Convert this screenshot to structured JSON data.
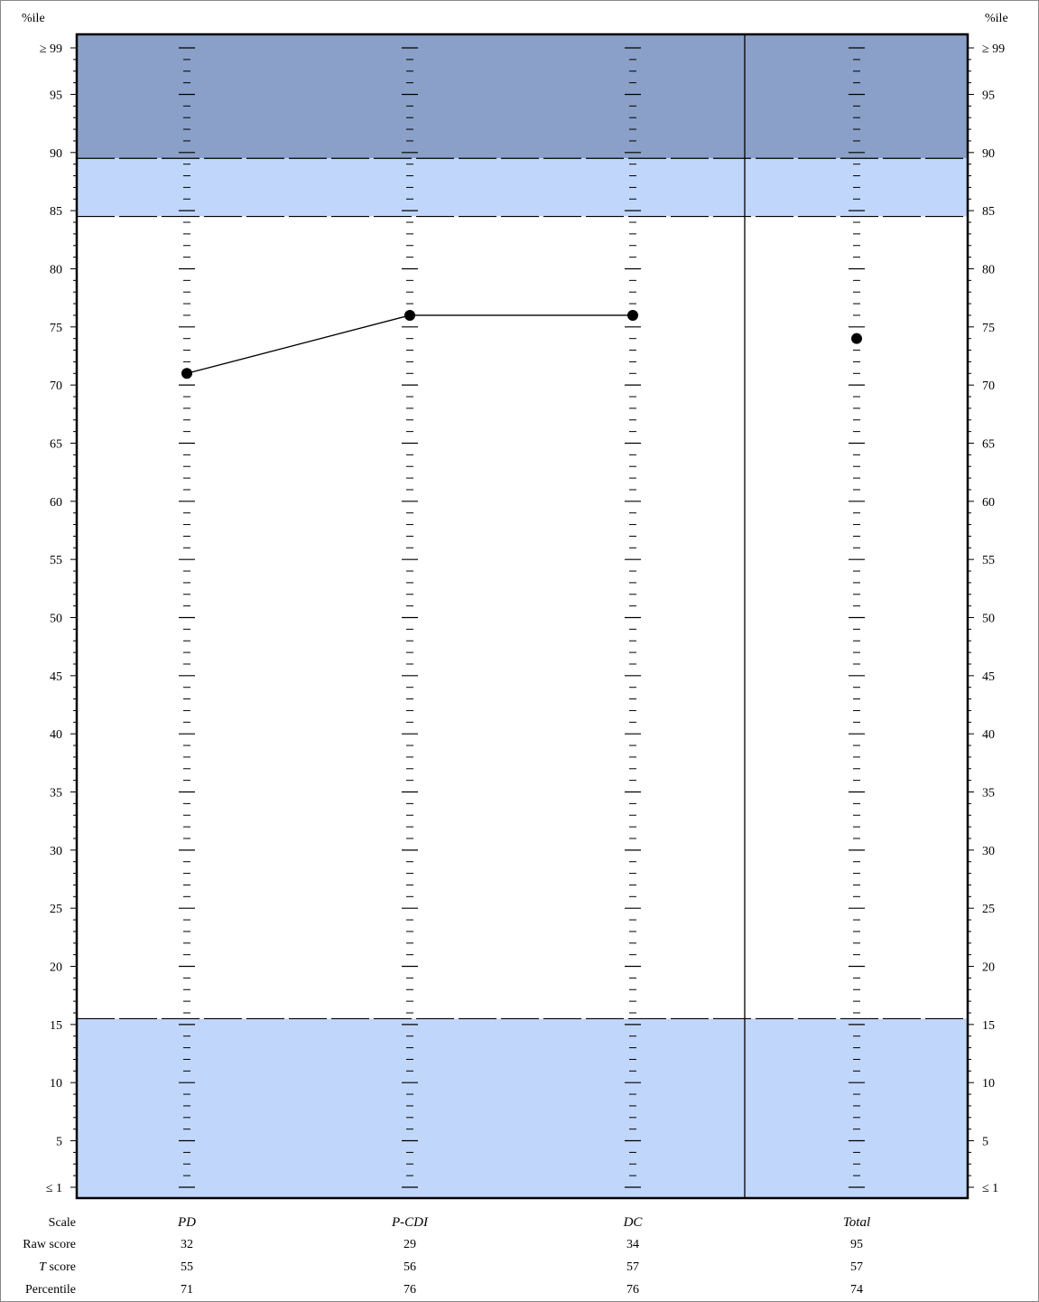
{
  "chart_data": {
    "type": "line",
    "axis_label_left": "%ile",
    "axis_label_right": "%ile",
    "y_ticks": [
      {
        "value": 99,
        "label": "≥ 99"
      },
      {
        "value": 95,
        "label": "95"
      },
      {
        "value": 90,
        "label": "90"
      },
      {
        "value": 85,
        "label": "85"
      },
      {
        "value": 80,
        "label": "80"
      },
      {
        "value": 75,
        "label": "75"
      },
      {
        "value": 70,
        "label": "70"
      },
      {
        "value": 65,
        "label": "65"
      },
      {
        "value": 60,
        "label": "60"
      },
      {
        "value": 55,
        "label": "55"
      },
      {
        "value": 50,
        "label": "50"
      },
      {
        "value": 45,
        "label": "45"
      },
      {
        "value": 40,
        "label": "40"
      },
      {
        "value": 35,
        "label": "35"
      },
      {
        "value": 30,
        "label": "30"
      },
      {
        "value": 25,
        "label": "25"
      },
      {
        "value": 20,
        "label": "20"
      },
      {
        "value": 15,
        "label": "15"
      },
      {
        "value": 10,
        "label": "10"
      },
      {
        "value": 5,
        "label": "5"
      },
      {
        "value": 1,
        "label": "≤ 1"
      }
    ],
    "ylim": [
      0,
      100
    ],
    "bands": [
      {
        "from": 89.5,
        "to": 100,
        "color": "#8aa0c8"
      },
      {
        "from": 84.5,
        "to": 89.5,
        "color": "#c0d6fa"
      },
      {
        "from": 0,
        "to": 15.5,
        "color": "#c0d6fa"
      }
    ],
    "cutoff_lines": [
      89.5,
      84.5,
      15.5
    ],
    "scales": [
      {
        "name": "PD",
        "raw": "32",
        "t": "55",
        "percentile": 71,
        "group": 1
      },
      {
        "name": "P-CDI",
        "raw": "29",
        "t": "56",
        "percentile": 76,
        "group": 1
      },
      {
        "name": "DC",
        "raw": "34",
        "t": "57",
        "percentile": 76,
        "group": 1
      },
      {
        "name": "Total",
        "raw": "95",
        "t": "57",
        "percentile": 74,
        "group": 2
      }
    ],
    "row_labels": {
      "scale": "Scale",
      "raw": "Raw score",
      "t_italic": "T",
      "t_rest": " score",
      "percentile": "Percentile"
    },
    "colors": {
      "dark_band": "#8aa0c8",
      "light_band": "#c0d6fa",
      "ink": "#000000"
    }
  }
}
